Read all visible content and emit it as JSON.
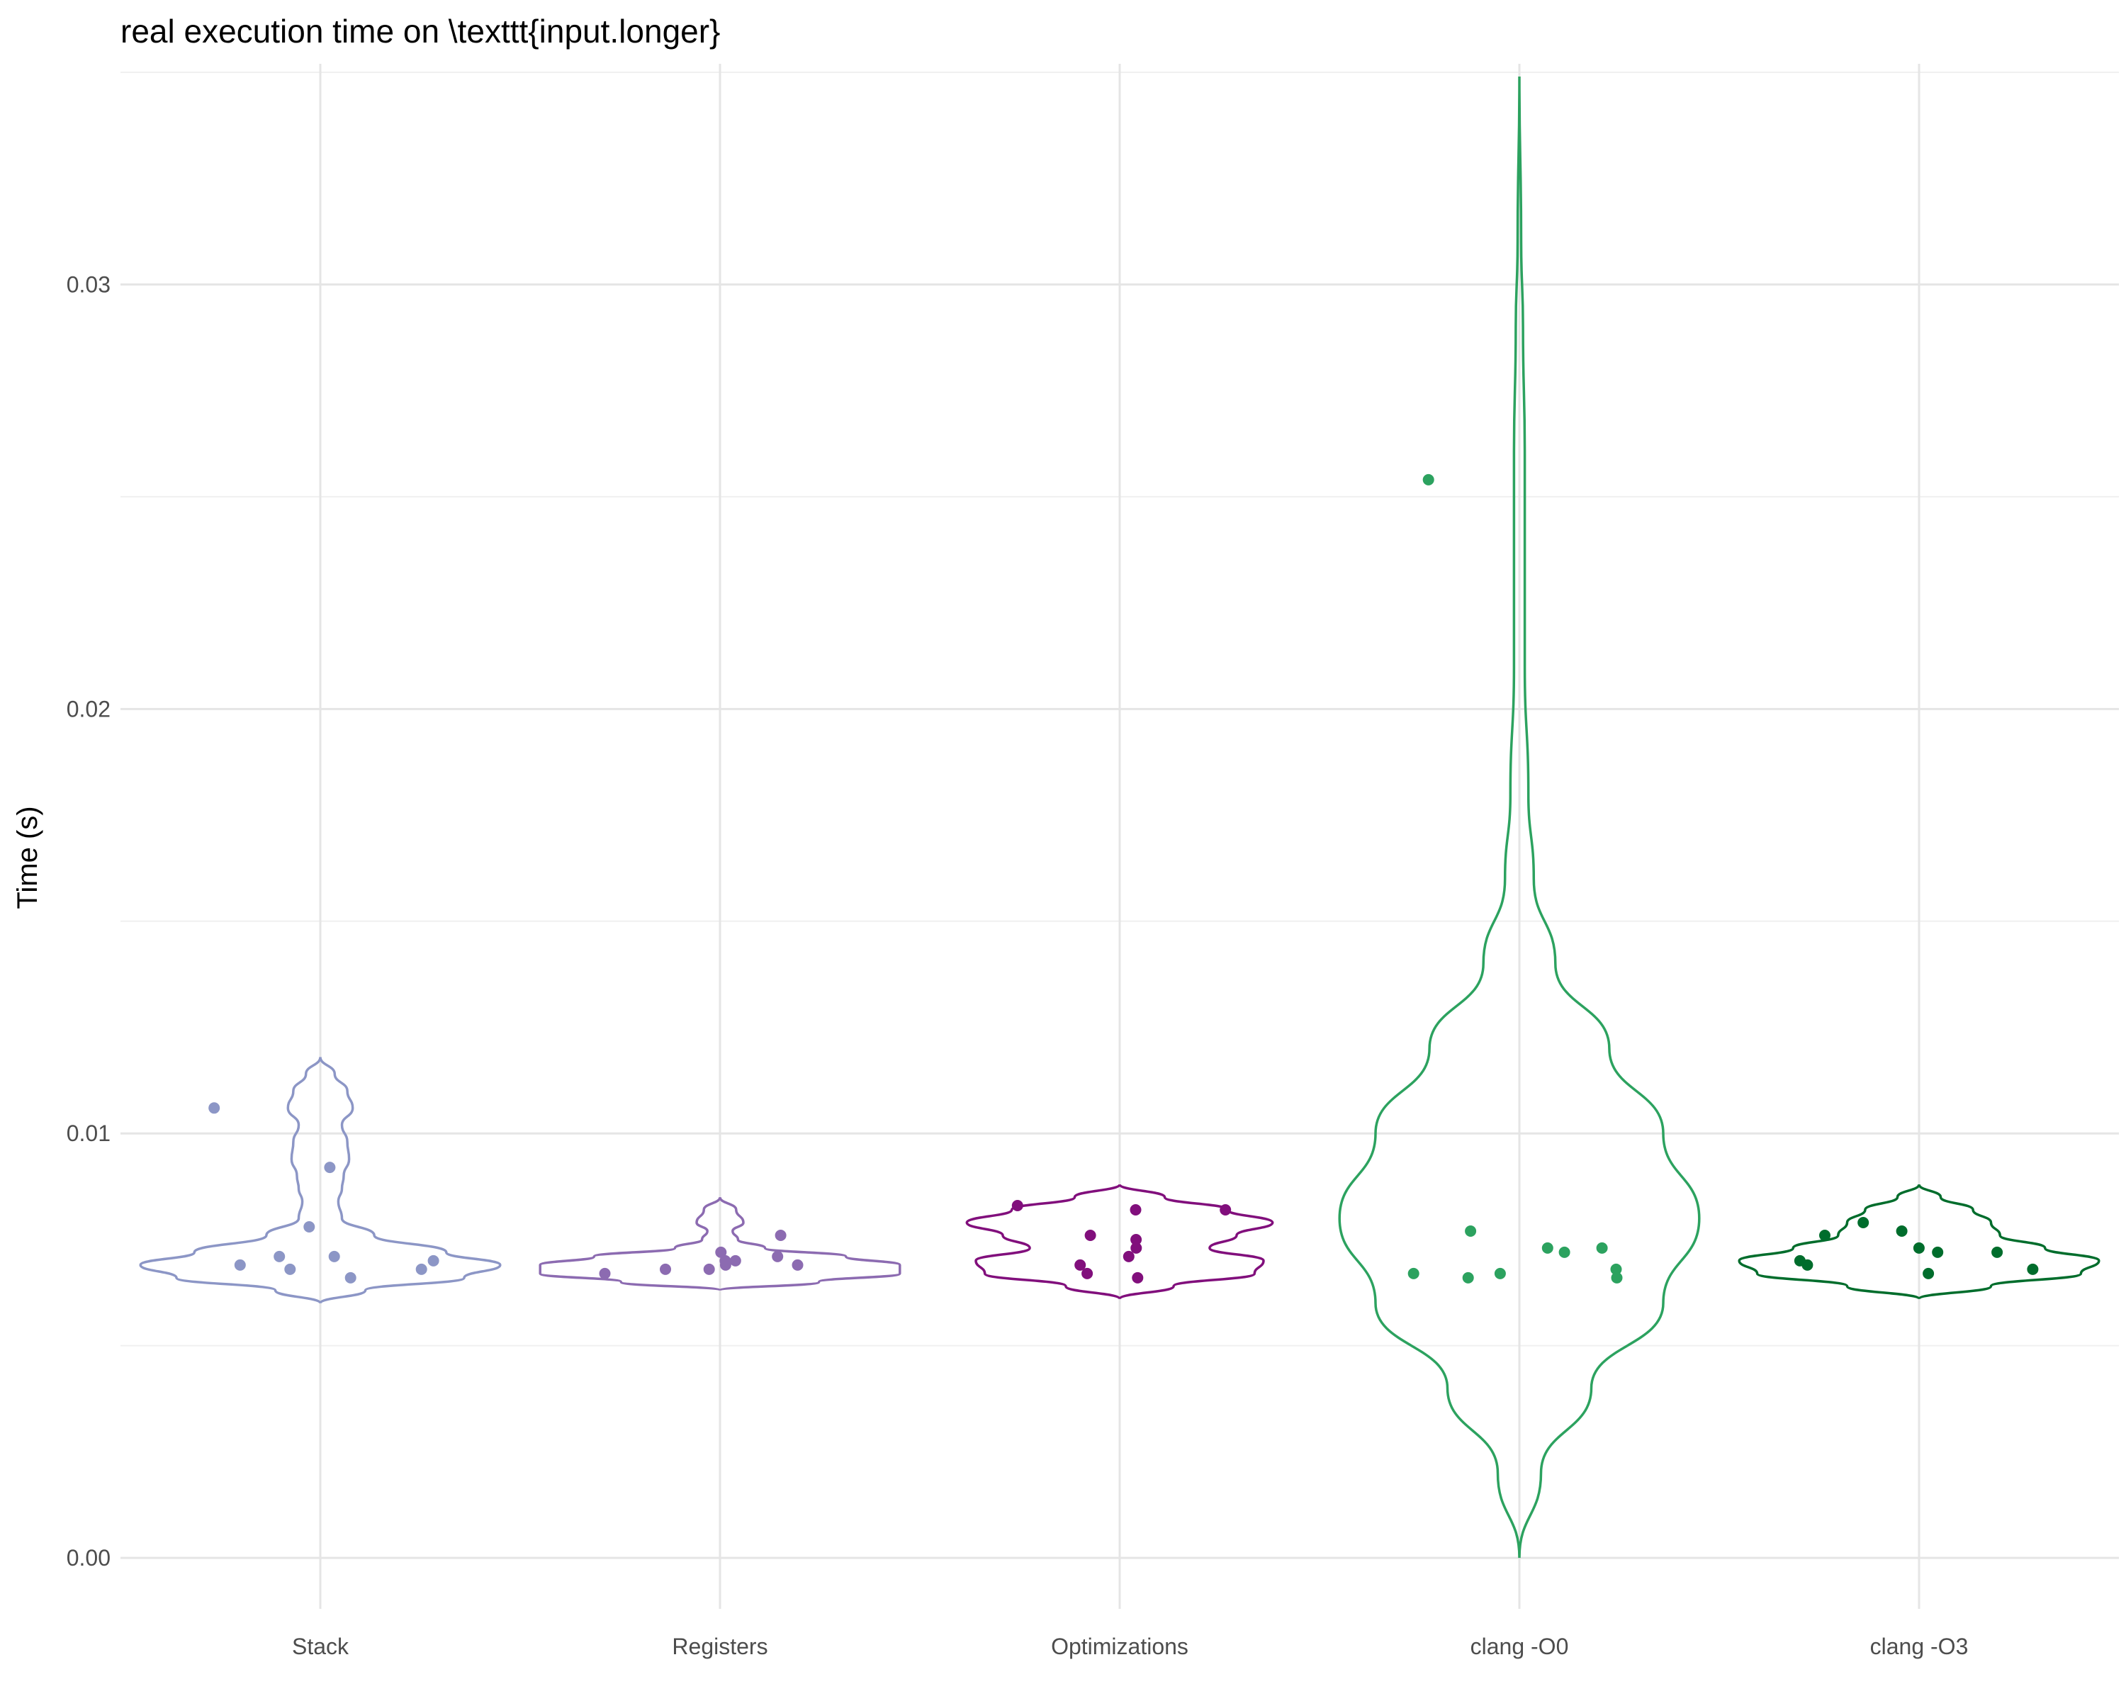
{
  "chart_data": {
    "type": "violin",
    "title": "real execution time on \\texttt{input.longer}",
    "xlabel": "",
    "ylabel": "Time (s)",
    "ylim": [
      -0.0012,
      0.0352
    ],
    "yticks": [
      0.0,
      0.01,
      0.02,
      0.03
    ],
    "ytick_labels": [
      "0.00",
      "0.01",
      "0.02",
      "0.03"
    ],
    "grid": true,
    "categories": [
      "Stack",
      "Registers",
      "Optimizations",
      "clang -O0",
      "clang -O3"
    ],
    "colors": [
      "#8c96c6",
      "#8c6bb1",
      "#810f7c",
      "#2ca25f",
      "#006d2c"
    ],
    "series": [
      {
        "points": [
          0.0068,
          0.0106,
          0.0071,
          0.0068,
          0.0078,
          0.0066,
          0.0069,
          0.0071,
          0.0092,
          0.007
        ],
        "density": [
          [
            0.006,
            0
          ],
          [
            0.0063,
            0.25
          ],
          [
            0.0066,
            0.8
          ],
          [
            0.0069,
            1.0
          ],
          [
            0.0072,
            0.7
          ],
          [
            0.0076,
            0.3
          ],
          [
            0.008,
            0.12
          ],
          [
            0.0084,
            0.1
          ],
          [
            0.0087,
            0.12
          ],
          [
            0.009,
            0.13
          ],
          [
            0.0094,
            0.16
          ],
          [
            0.0098,
            0.15
          ],
          [
            0.0102,
            0.12
          ],
          [
            0.0106,
            0.18
          ],
          [
            0.011,
            0.15
          ],
          [
            0.0114,
            0.08
          ],
          [
            0.0118,
            0
          ]
        ]
      },
      {
        "points": [
          0.0071,
          0.007,
          0.0068,
          0.0068,
          0.0069,
          0.0076,
          0.0072,
          0.0069,
          0.007,
          0.0067
        ],
        "density": [
          [
            0.0063,
            0
          ],
          [
            0.0065,
            0.55
          ],
          [
            0.0067,
            1.0
          ],
          [
            0.0069,
            1.0
          ],
          [
            0.0071,
            0.7
          ],
          [
            0.0073,
            0.25
          ],
          [
            0.0075,
            0.1
          ],
          [
            0.0077,
            0.07
          ],
          [
            0.0079,
            0.13
          ],
          [
            0.0082,
            0.09
          ],
          [
            0.0085,
            0
          ]
        ]
      },
      {
        "points": [
          0.0083,
          0.0067,
          0.0069,
          0.0082,
          0.0071,
          0.0073,
          0.0082,
          0.0066,
          0.0075,
          0.0076
        ],
        "density": [
          [
            0.0061,
            0
          ],
          [
            0.0064,
            0.3
          ],
          [
            0.0067,
            0.75
          ],
          [
            0.007,
            0.8
          ],
          [
            0.0073,
            0.5
          ],
          [
            0.0076,
            0.65
          ],
          [
            0.0079,
            0.85
          ],
          [
            0.0082,
            0.6
          ],
          [
            0.0085,
            0.25
          ],
          [
            0.0088,
            0
          ]
        ]
      },
      {
        "points": [
          0.0067,
          0.0077,
          0.0068,
          0.0073,
          0.0066,
          0.0072,
          0.0254,
          0.0073,
          0.0067,
          0.0066
        ],
        "density": [
          [
            0.0,
            0
          ],
          [
            0.002,
            0.12
          ],
          [
            0.004,
            0.4
          ],
          [
            0.006,
            0.8
          ],
          [
            0.008,
            1.0
          ],
          [
            0.01,
            0.8
          ],
          [
            0.012,
            0.5
          ],
          [
            0.014,
            0.2
          ],
          [
            0.016,
            0.08
          ],
          [
            0.018,
            0.05
          ],
          [
            0.021,
            0.03
          ],
          [
            0.024,
            0.03
          ],
          [
            0.026,
            0.03
          ],
          [
            0.029,
            0.02
          ],
          [
            0.031,
            0.01
          ],
          [
            0.0349,
            0
          ]
        ]
      },
      {
        "points": [
          0.0072,
          0.0067,
          0.0069,
          0.0076,
          0.0079,
          0.0068,
          0.0077,
          0.007,
          0.0073,
          0.0072
        ],
        "density": [
          [
            0.0061,
            0
          ],
          [
            0.0064,
            0.4
          ],
          [
            0.0067,
            0.9
          ],
          [
            0.007,
            1.0
          ],
          [
            0.0073,
            0.7
          ],
          [
            0.0076,
            0.45
          ],
          [
            0.0079,
            0.4
          ],
          [
            0.0082,
            0.3
          ],
          [
            0.0085,
            0.12
          ],
          [
            0.0088,
            0
          ]
        ]
      }
    ]
  }
}
